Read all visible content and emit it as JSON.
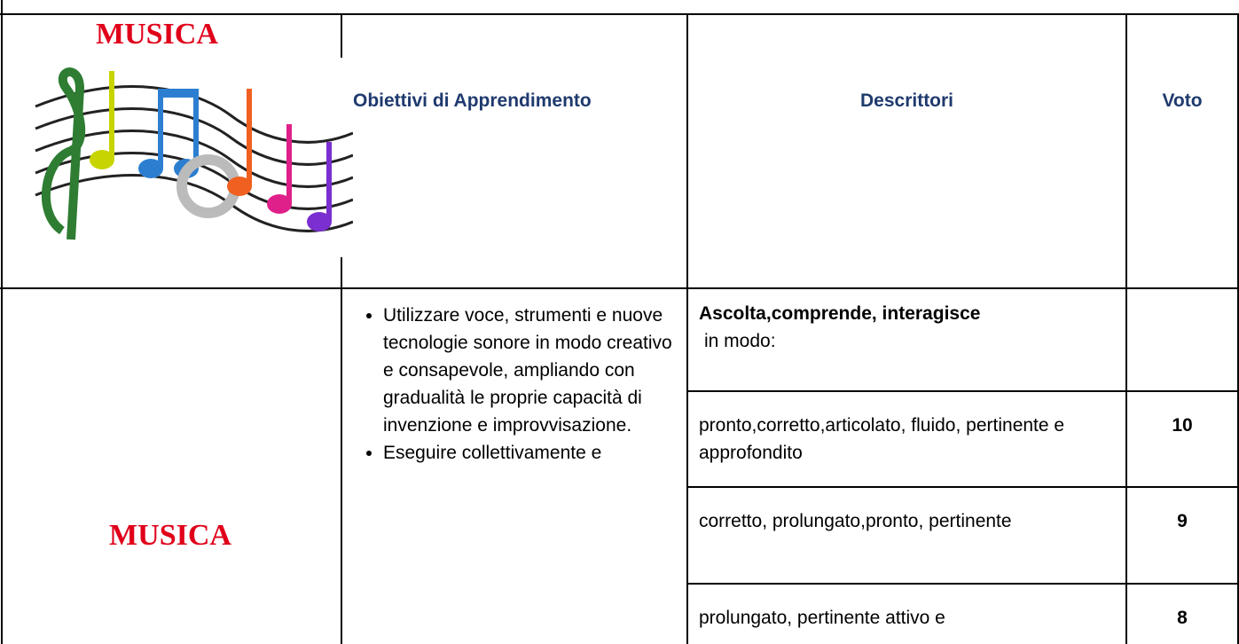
{
  "header": {
    "title": "MUSICA",
    "columns": [
      "Obiettivi di Apprendimento",
      "Descrittori",
      "Voto"
    ]
  },
  "section": "MUSICA",
  "objectives": [
    "Utilizzare voce, strumenti e nuove tecnologie sonore in modo creativo e consapevole, ampliando con gradualità le proprie capacità di invenzione e improvvisazione.",
    "Eseguire collettivamente e"
  ],
  "descriptor_intro": {
    "bold": "Ascolta,comprende, interagisce",
    "text": "in modo:"
  },
  "descriptors": [
    {
      "text": "pronto,corretto,articolato, fluido, pertinente e approfondito",
      "voto": "10"
    },
    {
      "text": "corretto, prolungato,pronto, pertinente",
      "voto": "9"
    },
    {
      "text": "prolungato, pertinente attivo e",
      "voto": "8"
    }
  ]
}
